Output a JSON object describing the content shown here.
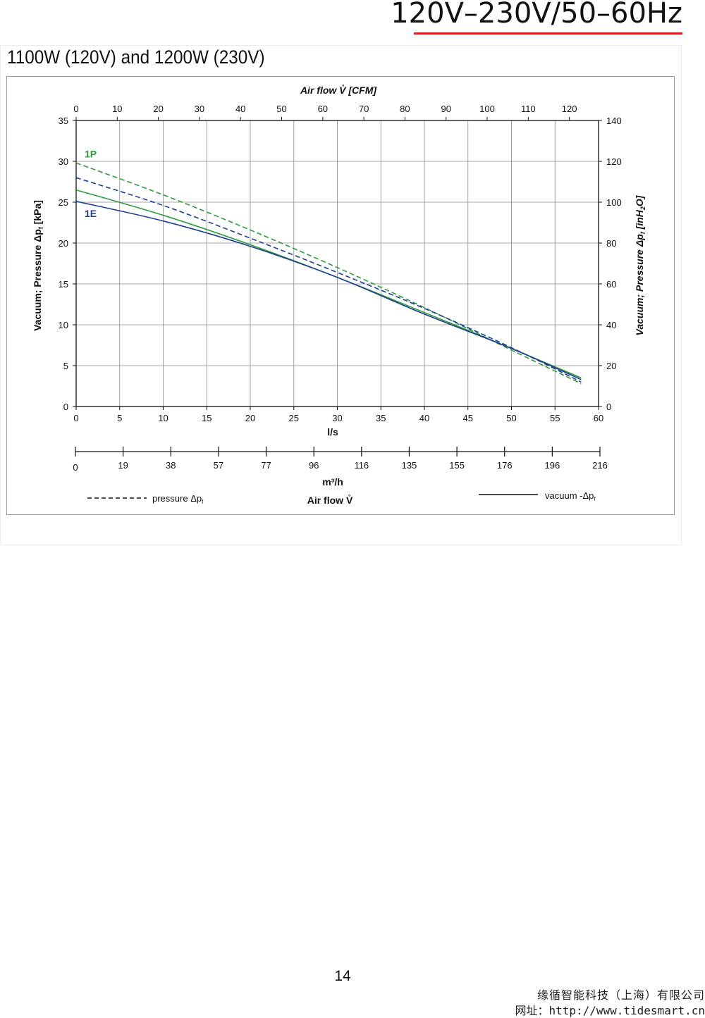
{
  "header": {
    "title": "120V–230V/50–60Hz",
    "accent_color": "#e02020"
  },
  "panel": {
    "title": "1100W (120V) and 1200W (230V)"
  },
  "chart_data": {
    "type": "line",
    "x_bottom": {
      "label": "l/s",
      "range": [
        0,
        60
      ],
      "ticks": [
        "0",
        "5",
        "10",
        "15",
        "20",
        "25",
        "30",
        "35",
        "40",
        "45",
        "50",
        "55",
        "60"
      ]
    },
    "x_top": {
      "label": "Air flow V̊ [CFM]",
      "range": [
        0,
        127.1
      ],
      "ticks": [
        "0",
        "10",
        "20",
        "30",
        "40",
        "50",
        "60",
        "70",
        "80",
        "90",
        "100",
        "110",
        "120"
      ]
    },
    "x_secondary": {
      "label": "m³/h",
      "ticks": [
        "0",
        "19",
        "38",
        "57",
        "77",
        "96",
        "116",
        "135",
        "155",
        "176",
        "196",
        "216"
      ]
    },
    "y_left": {
      "label": "Vacuum; Pressure  Δp",
      "label_sub": "f",
      "label_unit": " [kPa]",
      "range": [
        0,
        35
      ],
      "ticks": [
        "0",
        "5",
        "10",
        "15",
        "20",
        "25",
        "30",
        "35"
      ]
    },
    "y_right": {
      "label": "Vacuum; Pressure  Δp",
      "label_sub": "f",
      "label_unit": " [inH",
      "label_sub2": "2",
      "label_unit2": "O]",
      "range": [
        0,
        140
      ],
      "ticks": [
        "0",
        "20",
        "40",
        "60",
        "80",
        "100",
        "120",
        "140"
      ]
    },
    "grid": true,
    "series": [
      {
        "name": "1P",
        "mode": "pressure",
        "dashed": true,
        "color": "#2e9a3e",
        "x": [
          0,
          10,
          20,
          30,
          40,
          50,
          58
        ],
        "y": [
          29.8,
          25.9,
          21.6,
          17.0,
          12.1,
          6.9,
          2.8
        ]
      },
      {
        "name": "1P",
        "mode": "vacuum",
        "dashed": false,
        "color": "#2e9a3e",
        "x": [
          0,
          10,
          20,
          30,
          40,
          50,
          58
        ],
        "y": [
          26.5,
          23.4,
          19.8,
          15.8,
          11.5,
          7.1,
          3.5
        ]
      },
      {
        "name": "1E",
        "mode": "pressure",
        "dashed": true,
        "color": "#1f3f8f",
        "x": [
          0,
          10,
          20,
          30,
          40,
          50,
          58
        ],
        "y": [
          28.0,
          24.6,
          20.6,
          16.4,
          12.0,
          7.2,
          3.0
        ]
      },
      {
        "name": "1E",
        "mode": "vacuum",
        "dashed": false,
        "color": "#1f3f8f",
        "x": [
          0,
          10,
          20,
          30,
          40,
          50,
          58
        ],
        "y": [
          25.1,
          22.7,
          19.6,
          15.8,
          11.3,
          7.1,
          3.3
        ]
      }
    ],
    "series_labels": [
      {
        "text": "1P",
        "color": "#2e9a3e"
      },
      {
        "text": "1E",
        "color": "#1f3f8f"
      }
    ],
    "legend": {
      "pressure_label": "pressure Δp",
      "pressure_sub": "f",
      "center_label": "Air flow V̊",
      "vacuum_label": "vacuum -Δp",
      "vacuum_sub": "f",
      "placement": "bottom"
    }
  },
  "footer": {
    "page_number": "14",
    "company": "缘循智能科技（上海）有限公司",
    "url": "网址：http://www.tidesmart.cn"
  }
}
